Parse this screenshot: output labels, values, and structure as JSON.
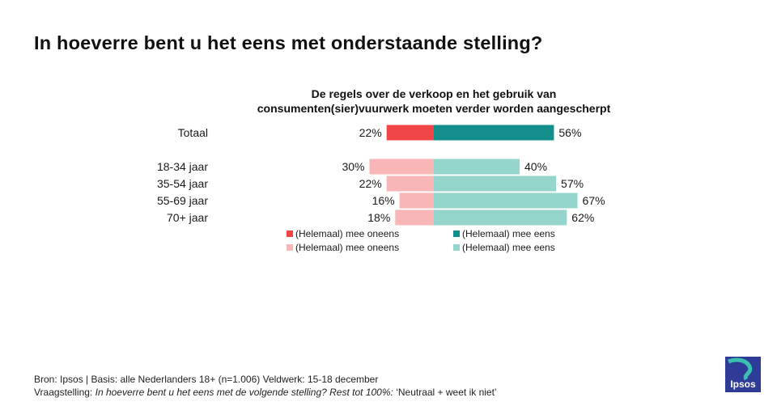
{
  "header": {
    "title": "In hoeverre bent u het eens met onderstaande stelling?"
  },
  "chart_data": {
    "type": "bar",
    "orientation": "horizontal-diverging",
    "title_lines": [
      "De regels over de verkoop en het gebruik van",
      "consumenten(sier)vuurwerk moeten verder worden aangescherpt"
    ],
    "categories": [
      "Totaal",
      "18-34 jaar",
      "35-54 jaar",
      "55-69 jaar",
      "70+ jaar"
    ],
    "series": [
      {
        "name": "(Helemaal) mee oneens",
        "values": [
          22,
          30,
          22,
          16,
          18
        ],
        "direction": "left"
      },
      {
        "name": "(Helemaal) mee eens",
        "values": [
          56,
          40,
          57,
          67,
          62
        ],
        "direction": "right"
      }
    ],
    "value_suffix": "%",
    "colors": {
      "total_disagree": "#f04545",
      "total_agree": "#128f8b",
      "age_disagree": "#f8b6b6",
      "age_agree": "#94d6cc"
    },
    "legend": [
      {
        "label": "(Helemaal) mee oneens",
        "color": "#f04545"
      },
      {
        "label": "(Helemaal) mee eens",
        "color": "#128f8b"
      },
      {
        "label": "(Helemaal) mee oneens",
        "color": "#f8b6b6"
      },
      {
        "label": "(Helemaal) mee eens",
        "color": "#94d6cc"
      }
    ],
    "legend_position": "bottom-center",
    "grid": false
  },
  "footer": {
    "source": "Bron: Ipsos | Basis: alle Nederlanders  18+ (n=1.006)  Veldwerk:  15-18  december",
    "question_prefix": "Vraagstelling: ",
    "question": "In hoeverre  bent u het eens met de volgende  stelling? Rest tot 100%:",
    "question_suffix": "  ‘Neutraal + weet ik niet’"
  },
  "logo": {
    "text": "Ipsos",
    "color": "#2e3b97"
  }
}
